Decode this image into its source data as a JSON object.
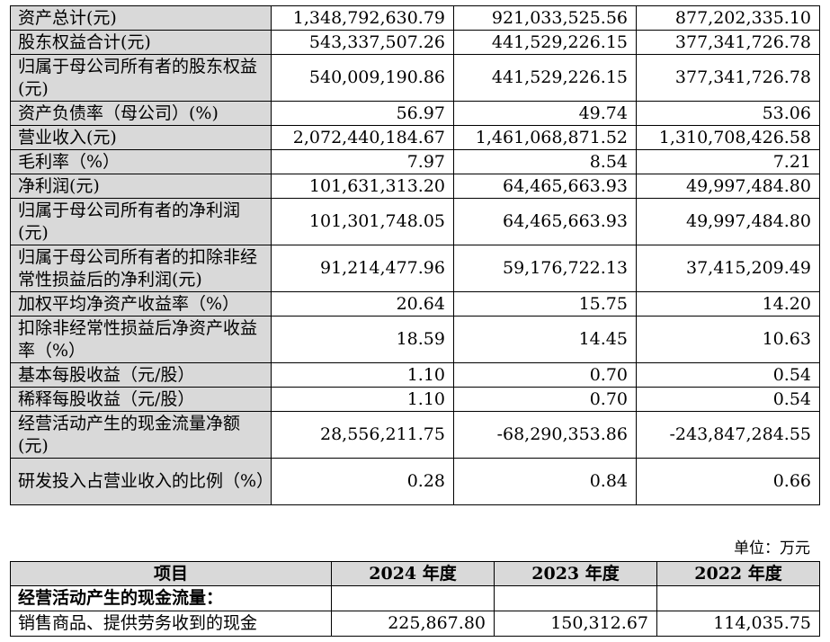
{
  "financial_table": {
    "rows": [
      {
        "label": "资产总计(元)",
        "v2024": "1,348,792,630.79",
        "v2023": "921,033,525.56",
        "v2022": "877,202,335.10"
      },
      {
        "label": "股东权益合计(元)",
        "v2024": "543,337,507.26",
        "v2023": "441,529,226.15",
        "v2022": "377,341,726.78"
      },
      {
        "label": "归属于母公司所有者的股东权益(元)",
        "v2024": "540,009,190.86",
        "v2023": "441,529,226.15",
        "v2022": "377,341,726.78"
      },
      {
        "label": "资产负债率（母公司）(%)",
        "v2024": "56.97",
        "v2023": "49.74",
        "v2022": "53.06"
      },
      {
        "label": "营业收入(元)",
        "v2024": "2,072,440,184.67",
        "v2023": "1,461,068,871.52",
        "v2022": "1,310,708,426.58"
      },
      {
        "label": "毛利率（%）",
        "v2024": "7.97",
        "v2023": "8.54",
        "v2022": "7.21"
      },
      {
        "label": "净利润(元)",
        "v2024": "101,631,313.20",
        "v2023": "64,465,663.93",
        "v2022": "49,997,484.80"
      },
      {
        "label": "归属于母公司所有者的净利润(元)",
        "v2024": "101,301,748.05",
        "v2023": "64,465,663.93",
        "v2022": "49,997,484.80"
      },
      {
        "label": "归属于母公司所有者的扣除非经常性损益后的净利润(元)",
        "v2024": "91,214,477.96",
        "v2023": "59,176,722.13",
        "v2022": "37,415,209.49"
      },
      {
        "label": "加权平均净资产收益率（%）",
        "v2024": "20.64",
        "v2023": "15.75",
        "v2022": "14.20"
      },
      {
        "label": "扣除非经常性损益后净资产收益率（%）",
        "v2024": "18.59",
        "v2023": "14.45",
        "v2022": "10.63"
      },
      {
        "label": "基本每股收益（元/股）",
        "v2024": "1.10",
        "v2023": "0.70",
        "v2022": "0.54"
      },
      {
        "label": "稀释每股收益（元/股）",
        "v2024": "1.10",
        "v2023": "0.70",
        "v2022": "0.54"
      },
      {
        "label": "经营活动产生的现金流量净额(元)",
        "v2024": "28,556,211.75",
        "v2023": "-68,290,353.86",
        "v2022": "-243,847,284.55"
      },
      {
        "label": "研发投入占营业收入的比例（%）",
        "v2024": "0.28",
        "v2023": "0.84",
        "v2022": "0.66"
      }
    ]
  },
  "unit_note": "单位：万元",
  "cashflow_table": {
    "headers": {
      "item": "项目",
      "y2024": "2024 年度",
      "y2023": "2023 年度",
      "y2022": "2022 年度"
    },
    "section_title": "经营活动产生的现金流量：",
    "rows": [
      {
        "label": "销售商品、提供劳务收到的现金",
        "v2024": "225,867.80",
        "v2023": "150,312.67",
        "v2022": "114,035.75"
      }
    ]
  }
}
